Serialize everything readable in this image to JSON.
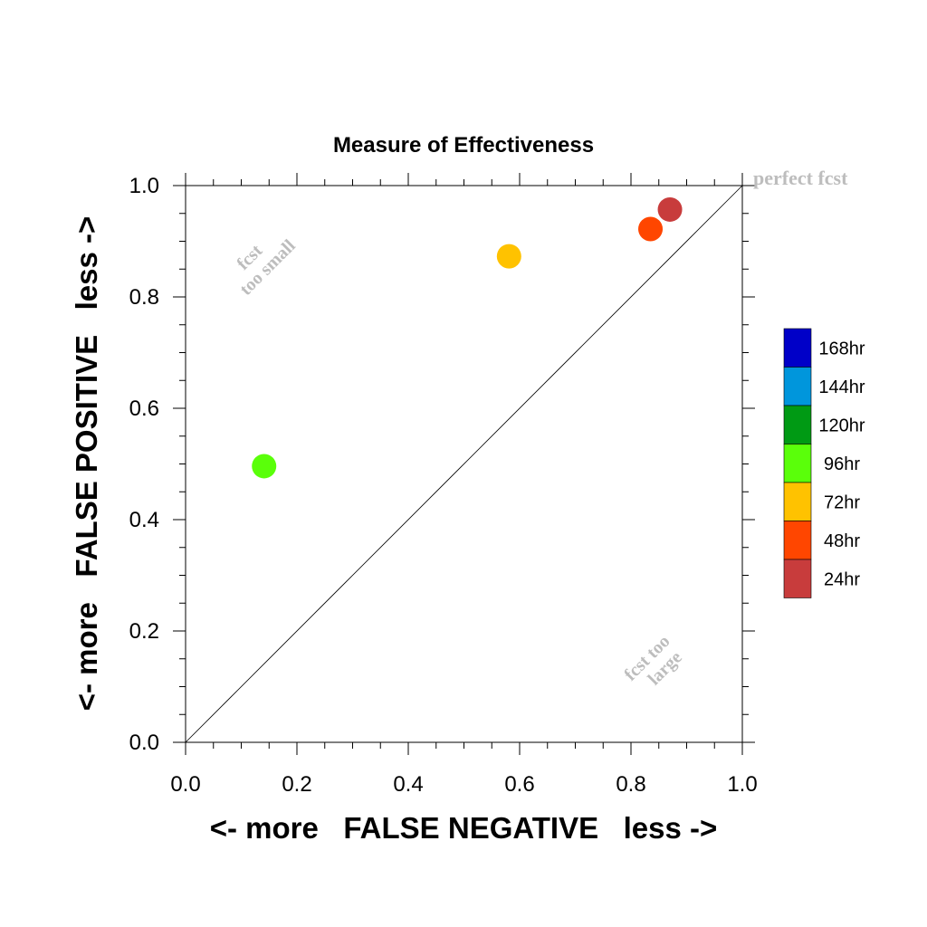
{
  "chart_data": {
    "type": "scatter",
    "title": "Measure of Effectiveness",
    "xlabel": "<- more   FALSE NEGATIVE   less ->",
    "ylabel": "<- more   FALSE POSITIVE   less ->",
    "xlim": [
      0.0,
      1.0
    ],
    "ylim": [
      0.0,
      1.0
    ],
    "xticks": [
      "0.0",
      "0.2",
      "0.4",
      "0.6",
      "0.8",
      "1.0"
    ],
    "yticks": [
      "0.0",
      "0.2",
      "0.4",
      "0.6",
      "0.8",
      "1.0"
    ],
    "grid": false,
    "diagonal_line": true,
    "annotations": {
      "perfect": "perfect fcst",
      "small_line1": "fcst",
      "small_line2": "too small",
      "large_line1": "fcst too",
      "large_line2": "large"
    },
    "legend": {
      "placement": "right",
      "entries": [
        {
          "label": "168hr",
          "color": "#0000c8"
        },
        {
          "label": "144hr",
          "color": "#0096dc"
        },
        {
          "label": "120hr",
          "color": "#009a14"
        },
        {
          "label": "96hr",
          "color": "#5aff0a"
        },
        {
          "label": "72hr",
          "color": "#ffc200"
        },
        {
          "label": "48hr",
          "color": "#ff4600"
        },
        {
          "label": "24hr",
          "color": "#c83c3c"
        }
      ]
    },
    "points": [
      {
        "series": "24hr",
        "x": 0.87,
        "y": 0.957,
        "color": "#c83c3c"
      },
      {
        "series": "48hr",
        "x": 0.835,
        "y": 0.922,
        "color": "#ff4600"
      },
      {
        "series": "72hr",
        "x": 0.581,
        "y": 0.873,
        "color": "#ffc200"
      },
      {
        "series": "96hr",
        "x": 0.141,
        "y": 0.496,
        "color": "#5aff0a"
      }
    ]
  }
}
